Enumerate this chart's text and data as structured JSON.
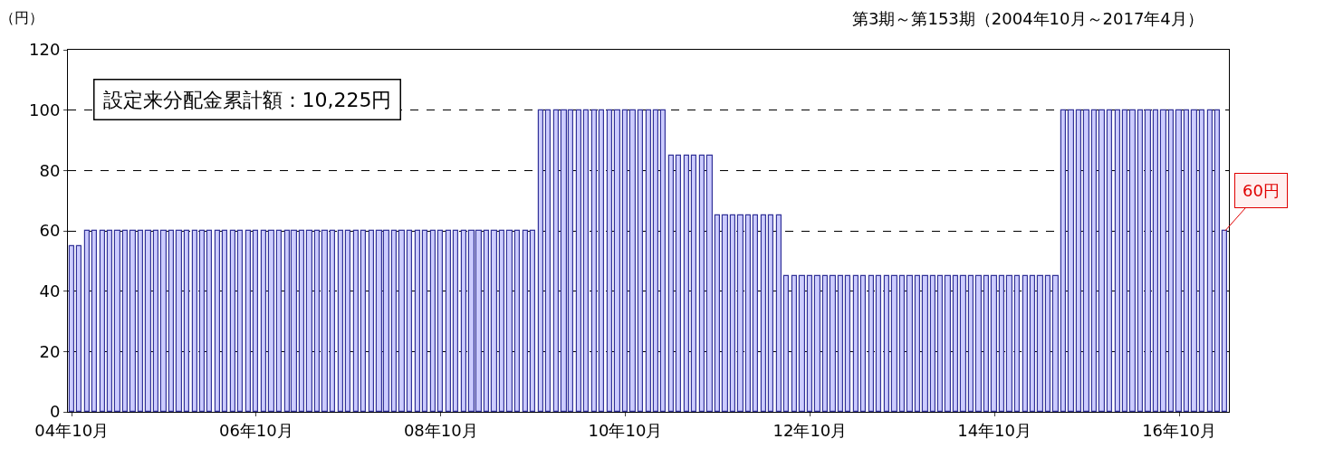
{
  "chart_data": {
    "type": "bar",
    "subtitle": "第3期～第153期（2004年10月～2017年4月）",
    "ylabel": "（円）",
    "annotations": [
      "設定来分配金累計額：10,225円",
      {
        "text": "60円",
        "x": "2017-04",
        "y": 60
      }
    ],
    "x": [
      "2004-10",
      "2004-11",
      "2004-12",
      "2005-01",
      "2005-02",
      "2005-03",
      "2005-04",
      "2005-05",
      "2005-06",
      "2005-07",
      "2005-08",
      "2005-09",
      "2005-10",
      "2005-11",
      "2005-12",
      "2006-01",
      "2006-02",
      "2006-03",
      "2006-04",
      "2006-05",
      "2006-06",
      "2006-07",
      "2006-08",
      "2006-09",
      "2006-10",
      "2006-11",
      "2006-12",
      "2007-01",
      "2007-02",
      "2007-03",
      "2007-04",
      "2007-05",
      "2007-06",
      "2007-07",
      "2007-08",
      "2007-09",
      "2007-10",
      "2007-11",
      "2007-12",
      "2008-01",
      "2008-02",
      "2008-03",
      "2008-04",
      "2008-05",
      "2008-06",
      "2008-07",
      "2008-08",
      "2008-09",
      "2008-10",
      "2008-11",
      "2008-12",
      "2009-01",
      "2009-02",
      "2009-03",
      "2009-04",
      "2009-05",
      "2009-06",
      "2009-07",
      "2009-08",
      "2009-09",
      "2009-10",
      "2009-11",
      "2009-12",
      "2010-01",
      "2010-02",
      "2010-03",
      "2010-04",
      "2010-05",
      "2010-06",
      "2010-07",
      "2010-08",
      "2010-09",
      "2010-10",
      "2010-11",
      "2010-12",
      "2011-01",
      "2011-02",
      "2011-03",
      "2011-04",
      "2011-05",
      "2011-06",
      "2011-07",
      "2011-08",
      "2011-09",
      "2011-10",
      "2011-11",
      "2011-12",
      "2012-01",
      "2012-02",
      "2012-03",
      "2012-04",
      "2012-05",
      "2012-06",
      "2012-07",
      "2012-08",
      "2012-09",
      "2012-10",
      "2012-11",
      "2012-12",
      "2013-01",
      "2013-02",
      "2013-03",
      "2013-04",
      "2013-05",
      "2013-06",
      "2013-07",
      "2013-08",
      "2013-09",
      "2013-10",
      "2013-11",
      "2013-12",
      "2014-01",
      "2014-02",
      "2014-03",
      "2014-04",
      "2014-05",
      "2014-06",
      "2014-07",
      "2014-08",
      "2014-09",
      "2014-10",
      "2014-11",
      "2014-12",
      "2015-01",
      "2015-02",
      "2015-03",
      "2015-04",
      "2015-05",
      "2015-06",
      "2015-07",
      "2015-08",
      "2015-09",
      "2015-10",
      "2015-11",
      "2015-12",
      "2016-01",
      "2016-02",
      "2016-03",
      "2016-04",
      "2016-05",
      "2016-06",
      "2016-07",
      "2016-08",
      "2016-09",
      "2016-10",
      "2016-11",
      "2016-12",
      "2017-01",
      "2017-02",
      "2017-03",
      "2017-04"
    ],
    "values": [
      55,
      55,
      60,
      60,
      60,
      60,
      60,
      60,
      60,
      60,
      60,
      60,
      60,
      60,
      60,
      60,
      60,
      60,
      60,
      60,
      60,
      60,
      60,
      60,
      60,
      60,
      60,
      60,
      60,
      60,
      60,
      60,
      60,
      60,
      60,
      60,
      60,
      60,
      60,
      60,
      60,
      60,
      60,
      60,
      60,
      60,
      60,
      60,
      60,
      60,
      60,
      60,
      60,
      60,
      60,
      60,
      60,
      60,
      60,
      60,
      60,
      100,
      100,
      100,
      100,
      100,
      100,
      100,
      100,
      100,
      100,
      100,
      100,
      100,
      100,
      100,
      100,
      100,
      85,
      85,
      85,
      85,
      85,
      85,
      65,
      65,
      65,
      65,
      65,
      65,
      65,
      65,
      65,
      45,
      45,
      45,
      45,
      45,
      45,
      45,
      45,
      45,
      45,
      45,
      45,
      45,
      45,
      45,
      45,
      45,
      45,
      45,
      45,
      45,
      45,
      45,
      45,
      45,
      45,
      45,
      45,
      45,
      45,
      45,
      45,
      45,
      45,
      45,
      45,
      100,
      100,
      100,
      100,
      100,
      100,
      100,
      100,
      100,
      100,
      100,
      100,
      100,
      100,
      100,
      100,
      100,
      100,
      100,
      100,
      100,
      60
    ],
    "color": "#ccccff",
    "xlim": [
      "2004-09-16",
      "2017-04-16"
    ],
    "xticks": [
      {
        "value": "2004-10",
        "label": "04年10月"
      },
      {
        "value": "2006-10",
        "label": "06年10月"
      },
      {
        "value": "2008-10",
        "label": "08年10月"
      },
      {
        "value": "2010-10",
        "label": "10年10月"
      },
      {
        "value": "2012-10",
        "label": "12年10月"
      },
      {
        "value": "2014-10",
        "label": "14年10月"
      },
      {
        "value": "2016-10",
        "label": "16年10月"
      }
    ],
    "ylim": [
      0,
      120
    ],
    "yticks": [
      0,
      20,
      40,
      60,
      80,
      100,
      120
    ],
    "grid": "y"
  }
}
